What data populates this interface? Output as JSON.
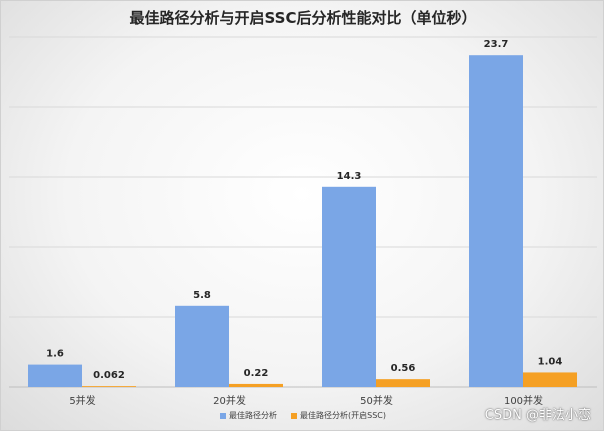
{
  "chart_data": {
    "type": "bar",
    "title": "最佳路径分析与开启SSC后分析性能对比（单位秒）",
    "categories": [
      "5并发",
      "20并发",
      "50并发",
      "100并发"
    ],
    "series": [
      {
        "name": "最佳路径分析",
        "values": [
          1.6,
          5.8,
          14.3,
          23.7
        ],
        "labels": [
          "1.6",
          "5.8",
          "14.3",
          "23.7"
        ],
        "color": "#7aa6e6"
      },
      {
        "name": "最佳路径分析(开启SSC)",
        "values": [
          0.062,
          0.22,
          0.56,
          1.04
        ],
        "labels": [
          "0.062",
          "0.22",
          "0.56",
          "1.04"
        ],
        "color": "#f5a024"
      }
    ],
    "ylim": [
      0,
      25
    ],
    "grid": true,
    "legend_position": "bottom"
  },
  "watermark": "CSDN @非法小恋"
}
